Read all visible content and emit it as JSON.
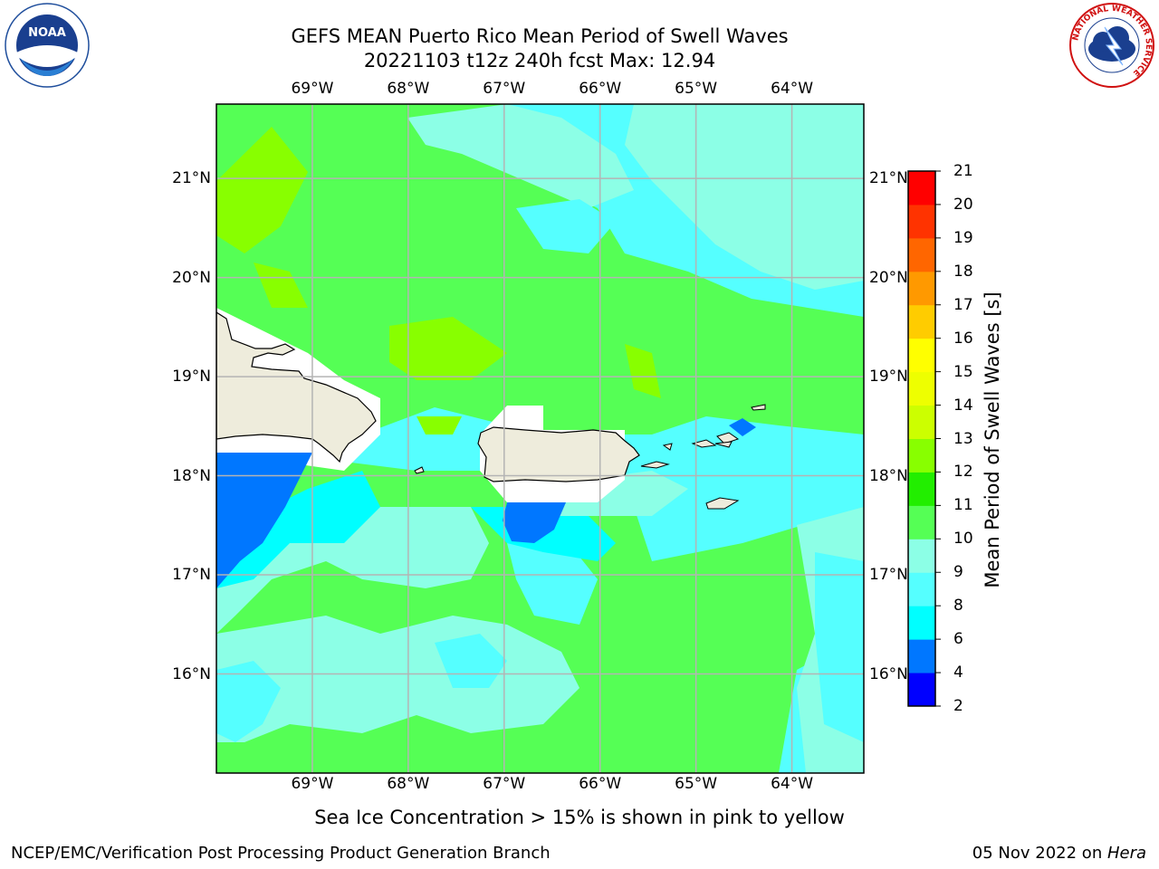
{
  "title": {
    "line1": "GEFS MEAN Puerto Rico Mean Period of Swell Waves",
    "line2": "20221103 t12z 240h fcst   Max: 12.94"
  },
  "map": {
    "lon_labels": [
      "69°W",
      "68°W",
      "67°W",
      "66°W",
      "65°W",
      "64°W"
    ],
    "lat_labels": [
      "21°N",
      "20°N",
      "19°N",
      "18°N",
      "17°N",
      "16°N"
    ],
    "extent": {
      "lon_min": -70.0,
      "lon_max": -63.25,
      "lat_min": 15.0,
      "lat_max": 21.75
    },
    "land_color": "#eeecdc",
    "grid_color": "#b4b4b4"
  },
  "colorbar": {
    "label": "Mean Period of Swell Waves [s]",
    "ticks": [
      "2",
      "4",
      "6",
      "8",
      "9",
      "10",
      "11",
      "12",
      "13",
      "14",
      "15",
      "16",
      "17",
      "18",
      "19",
      "20",
      "21"
    ],
    "colors": [
      "#0000ff",
      "#0077ff",
      "#00ffff",
      "#55ffff",
      "#8cffe6",
      "#55ff55",
      "#22ee00",
      "#88ff00",
      "#ccff00",
      "#eeff00",
      "#ffff00",
      "#ffcc00",
      "#ff9900",
      "#ff6600",
      "#ff3300",
      "#ff0000"
    ]
  },
  "footer": {
    "note": "Sea Ice Concentration > 15% is shown in pink to yellow",
    "credit": "NCEP/EMC/Verification Post Processing Product Generation Branch",
    "date": "05 Nov 2022 on ",
    "machine": "Hera"
  },
  "logos": {
    "noaa_text": "NOAA",
    "nws_text": "NATIONAL WEATHER SERVICE"
  }
}
